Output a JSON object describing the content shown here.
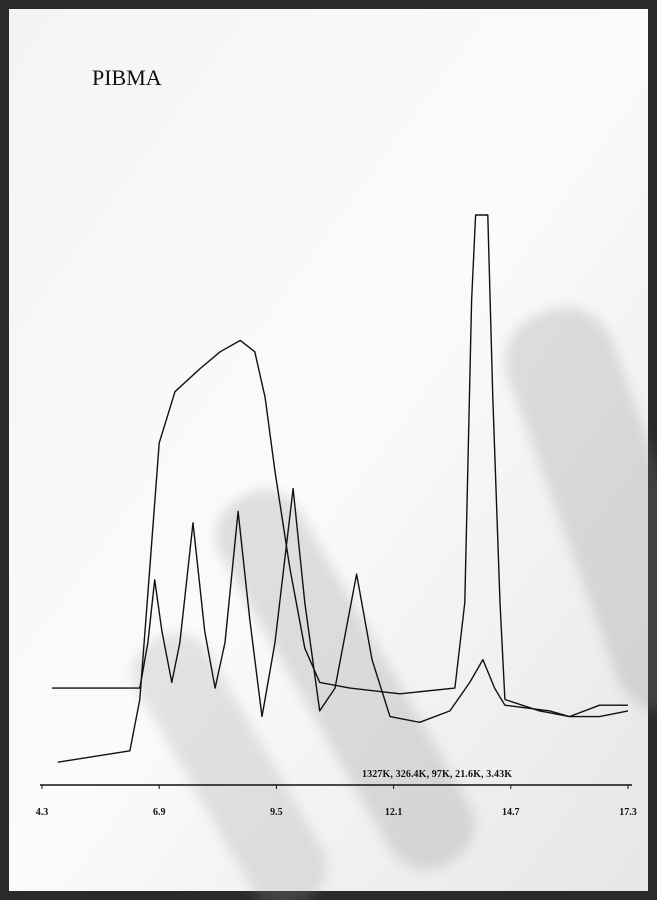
{
  "chart_data": {
    "type": "line",
    "title": "PIBMA",
    "annotation": "1327K, 326.4K, 97K, 21.6K, 3.43K",
    "xlim": [
      4.3,
      17.3
    ],
    "xticks": [
      4.3,
      6.9,
      9.5,
      12.1,
      14.7,
      17.3
    ],
    "ylim": [
      0,
      100
    ],
    "series": [
      {
        "color": "#111111",
        "x": [
          4.65,
          6.25,
          6.47,
          6.7,
          6.9,
          7.25,
          7.8,
          8.25,
          8.7,
          9.02,
          9.25,
          9.47,
          9.8,
          10.13,
          10.46,
          11.13,
          12.24,
          13.46,
          13.68,
          13.83,
          13.92,
          14.19,
          14.3,
          14.46,
          14.57,
          15.34,
          16.0,
          16.67,
          17.3
        ],
        "values": [
          4,
          6,
          15,
          39,
          60,
          69,
          73,
          76,
          78,
          76,
          68,
          55,
          38,
          24,
          18,
          17,
          16,
          17,
          32,
          85,
          100,
          100,
          68,
          32,
          15,
          13,
          12,
          12,
          13
        ]
      },
      {
        "color": "#111111",
        "x": [
          4.52,
          5.59,
          6.47,
          6.65,
          6.8,
          6.96,
          7.18,
          7.36,
          7.65,
          7.91,
          8.14,
          8.36,
          8.65,
          8.91,
          9.18,
          9.47,
          9.87,
          10.13,
          10.46,
          10.8,
          11.28,
          11.62,
          12.02,
          12.68,
          13.35,
          13.79,
          14.08,
          14.34,
          14.57,
          15.56,
          16.0,
          16.67,
          17.3
        ],
        "values": [
          17,
          17,
          17,
          25,
          36,
          27,
          18,
          25,
          46,
          27,
          17,
          25,
          48,
          29,
          12,
          25,
          52,
          32,
          13,
          17,
          37,
          22,
          12,
          11,
          13,
          18,
          22,
          17,
          14,
          13,
          12,
          14,
          14
        ]
      }
    ]
  }
}
